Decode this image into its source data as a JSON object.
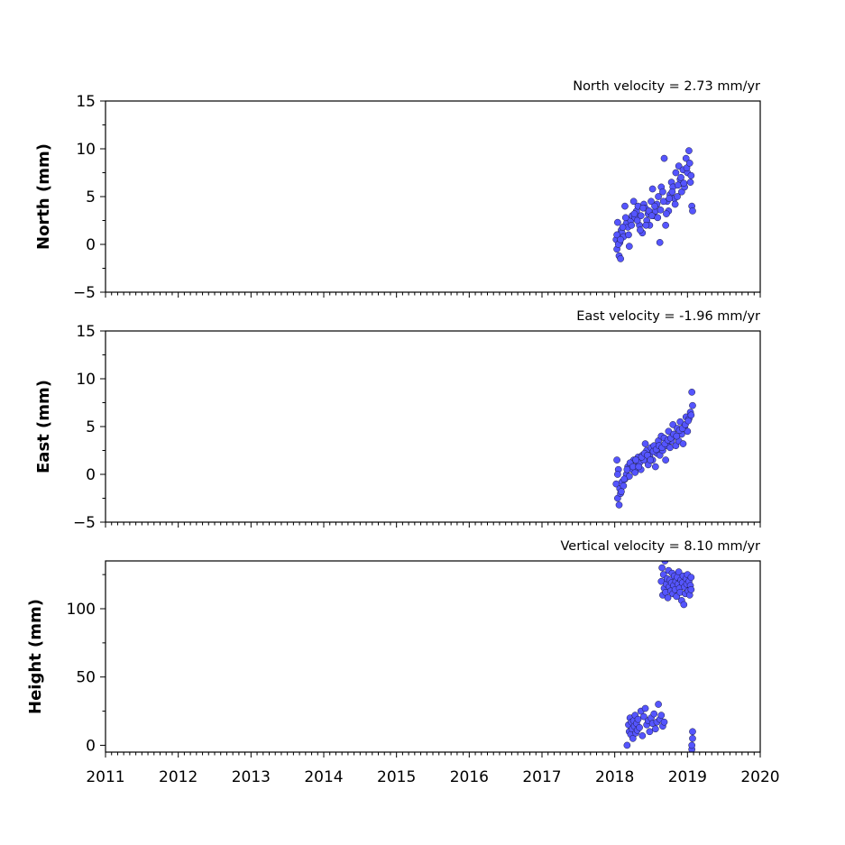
{
  "chart_data": [
    {
      "type": "scatter",
      "title": "North velocity = 2.73 mm/yr",
      "ylabel": "North (mm)",
      "xlim": [
        2011,
        2020
      ],
      "ylim": [
        -5,
        15
      ],
      "yticks": [
        -5,
        0,
        5,
        10,
        15
      ],
      "xticks": [
        2011,
        2012,
        2013,
        2014,
        2015,
        2016,
        2017,
        2018,
        2019,
        2020
      ],
      "show_xtick_labels": false,
      "marker_color": "#5555ff",
      "series": [
        {
          "x": [
            2018.02,
            2018.03,
            2018.04,
            2018.05,
            2018.06,
            2018.07,
            2018.08,
            2018.09,
            2018.1,
            2018.12,
            2018.14,
            2018.16,
            2018.18,
            2018.2,
            2018.22,
            2018.24,
            2018.26,
            2018.28,
            2018.3,
            2018.32,
            2018.34,
            2018.36,
            2018.38,
            2018.4,
            2018.42,
            2018.44,
            2018.46,
            2018.48,
            2018.5,
            2018.52,
            2018.54,
            2018.56,
            2018.58,
            2018.6,
            2018.62,
            2018.64,
            2018.66,
            2018.68,
            2018.7,
            2018.72,
            2018.74,
            2018.76,
            2018.78,
            2018.8,
            2018.82,
            2018.84,
            2018.86,
            2018.88,
            2018.9,
            2018.92,
            2018.94,
            2018.96,
            2018.98,
            2019.0,
            2019.02,
            2019.04,
            2019.06,
            2019.07,
            2018.03,
            2018.05,
            2018.08,
            2018.11,
            2018.15,
            2018.19,
            2018.23,
            2018.27,
            2018.31,
            2018.35,
            2018.39,
            2018.43,
            2018.47,
            2018.51,
            2018.55,
            2018.59,
            2018.63,
            2018.67,
            2018.71,
            2018.75,
            2018.79,
            2018.83,
            2018.87,
            2018.91,
            2018.95,
            2018.99,
            2019.03,
            2019.05
          ],
          "y": [
            0.5,
            -0.5,
            2.3,
            1.0,
            -1.2,
            0.2,
            -1.5,
            1.5,
            1.2,
            0.8,
            4.0,
            2.2,
            1.8,
            -0.2,
            2.5,
            3.0,
            4.5,
            2.8,
            3.5,
            4.0,
            2.0,
            3.0,
            1.2,
            4.2,
            3.8,
            2.5,
            3.2,
            2.0,
            4.5,
            5.8,
            3.0,
            3.5,
            4.2,
            5.0,
            0.2,
            6.0,
            5.5,
            9.0,
            2.0,
            4.5,
            3.5,
            5.2,
            6.5,
            6.0,
            4.8,
            7.5,
            5.0,
            8.2,
            6.8,
            5.5,
            7.8,
            6.0,
            9.0,
            7.5,
            9.8,
            6.5,
            4.0,
            3.5,
            1.0,
            0.0,
            0.5,
            1.8,
            2.8,
            1.0,
            2.0,
            3.2,
            2.5,
            1.5,
            3.8,
            2.0,
            3.5,
            3.0,
            4.0,
            2.8,
            3.6,
            4.5,
            3.2,
            4.8,
            5.5,
            4.2,
            6.2,
            7.0,
            6.4,
            8.0,
            8.5,
            7.2
          ]
        }
      ]
    },
    {
      "type": "scatter",
      "title": "East velocity = -1.96 mm/yr",
      "ylabel": "East (mm)",
      "xlim": [
        2011,
        2020
      ],
      "ylim": [
        -5,
        15
      ],
      "yticks": [
        -5,
        0,
        5,
        10,
        15
      ],
      "xticks": [
        2011,
        2012,
        2013,
        2014,
        2015,
        2016,
        2017,
        2018,
        2019,
        2020
      ],
      "show_xtick_labels": false,
      "marker_color": "#5555ff",
      "series": [
        {
          "x": [
            2018.02,
            2018.03,
            2018.04,
            2018.05,
            2018.06,
            2018.07,
            2018.08,
            2018.1,
            2018.12,
            2018.14,
            2018.16,
            2018.18,
            2018.2,
            2018.22,
            2018.24,
            2018.26,
            2018.28,
            2018.3,
            2018.32,
            2018.34,
            2018.36,
            2018.38,
            2018.4,
            2018.42,
            2018.44,
            2018.46,
            2018.48,
            2018.5,
            2018.52,
            2018.54,
            2018.56,
            2018.58,
            2018.6,
            2018.62,
            2018.64,
            2018.66,
            2018.68,
            2018.7,
            2018.72,
            2018.74,
            2018.76,
            2018.78,
            2018.8,
            2018.82,
            2018.84,
            2018.86,
            2018.88,
            2018.9,
            2018.92,
            2018.94,
            2018.96,
            2018.98,
            2019.0,
            2019.02,
            2019.04,
            2019.06,
            2019.07,
            2018.04,
            2018.09,
            2018.13,
            2018.17,
            2018.21,
            2018.25,
            2018.29,
            2018.33,
            2018.37,
            2018.41,
            2018.45,
            2018.49,
            2018.53,
            2018.57,
            2018.61,
            2018.65,
            2018.69,
            2018.73,
            2018.77,
            2018.81,
            2018.85,
            2018.89,
            2018.93,
            2018.97,
            2019.01,
            2019.05
          ],
          "y": [
            -1.0,
            1.5,
            -2.5,
            0.5,
            -3.2,
            -1.5,
            -2.0,
            -0.8,
            -1.2,
            -0.5,
            0.0,
            0.8,
            -0.2,
            1.0,
            0.5,
            1.5,
            0.2,
            0.8,
            1.8,
            1.2,
            0.5,
            2.0,
            1.5,
            3.2,
            2.5,
            1.0,
            2.0,
            2.8,
            1.5,
            3.0,
            0.8,
            2.2,
            3.5,
            2.0,
            4.0,
            2.5,
            3.8,
            1.5,
            3.0,
            4.5,
            2.8,
            3.5,
            5.2,
            4.0,
            3.0,
            4.8,
            3.5,
            5.5,
            4.2,
            3.2,
            5.0,
            6.0,
            4.5,
            5.8,
            6.5,
            8.6,
            7.2,
            0.0,
            -1.8,
            -0.5,
            0.5,
            1.2,
            0.8,
            1.5,
            0.8,
            1.8,
            2.2,
            2.0,
            1.5,
            2.4,
            2.6,
            3.0,
            2.8,
            3.2,
            3.6,
            3.8,
            4.2,
            4.0,
            4.6,
            4.8,
            5.2,
            5.6,
            6.2
          ]
        }
      ]
    },
    {
      "type": "scatter",
      "title": "Vertical velocity = 8.10 mm/yr",
      "ylabel": "Height (mm)",
      "xlim": [
        2011,
        2020
      ],
      "ylim": [
        -5,
        135
      ],
      "yticks": [
        0,
        50,
        100
      ],
      "xticks": [
        2011,
        2012,
        2013,
        2014,
        2015,
        2016,
        2017,
        2018,
        2019,
        2020
      ],
      "show_xtick_labels": true,
      "marker_color": "#5555ff",
      "series": [
        {
          "x": [
            2018.17,
            2018.19,
            2018.2,
            2018.21,
            2018.22,
            2018.23,
            2018.24,
            2018.25,
            2018.26,
            2018.27,
            2018.28,
            2018.29,
            2018.3,
            2018.31,
            2018.32,
            2018.34,
            2018.36,
            2018.38,
            2018.4,
            2018.42,
            2018.44,
            2018.46,
            2018.48,
            2018.5,
            2018.52,
            2018.54,
            2018.56,
            2018.58,
            2018.6,
            2018.62,
            2018.64,
            2018.66,
            2018.68,
            2018.64,
            2018.65,
            2018.66,
            2018.67,
            2018.68,
            2018.69,
            2018.7,
            2018.71,
            2018.72,
            2018.73,
            2018.74,
            2018.75,
            2018.76,
            2018.77,
            2018.78,
            2018.79,
            2018.8,
            2018.81,
            2018.82,
            2018.83,
            2018.84,
            2018.85,
            2018.86,
            2018.87,
            2018.88,
            2018.89,
            2018.9,
            2018.91,
            2018.92,
            2018.93,
            2018.94,
            2018.95,
            2018.96,
            2018.97,
            2018.98,
            2018.99,
            2019.0,
            2019.01,
            2019.02,
            2019.03,
            2019.04,
            2019.05,
            2019.05,
            2019.06,
            2019.06,
            2019.07,
            2019.07
          ],
          "y": [
            0,
            15,
            10,
            20,
            8,
            17,
            12,
            5,
            18,
            14,
            22,
            9,
            16,
            11,
            19,
            13,
            25,
            7,
            21,
            27,
            15,
            18,
            10,
            20,
            16,
            23,
            12,
            17,
            30,
            19,
            22,
            14,
            17,
            120,
            130,
            110,
            125,
            115,
            135,
            112,
            118,
            122,
            108,
            128,
            116,
            121,
            113,
            119,
            126,
            111,
            117,
            124,
            114,
            120,
            109,
            123,
            118,
            127,
            115,
            112,
            121,
            106,
            119,
            124,
            103,
            116,
            111,
            122,
            118,
            125,
            113,
            120,
            110,
            117,
            123,
            114,
            -3,
            0,
            5,
            10
          ]
        }
      ]
    }
  ]
}
